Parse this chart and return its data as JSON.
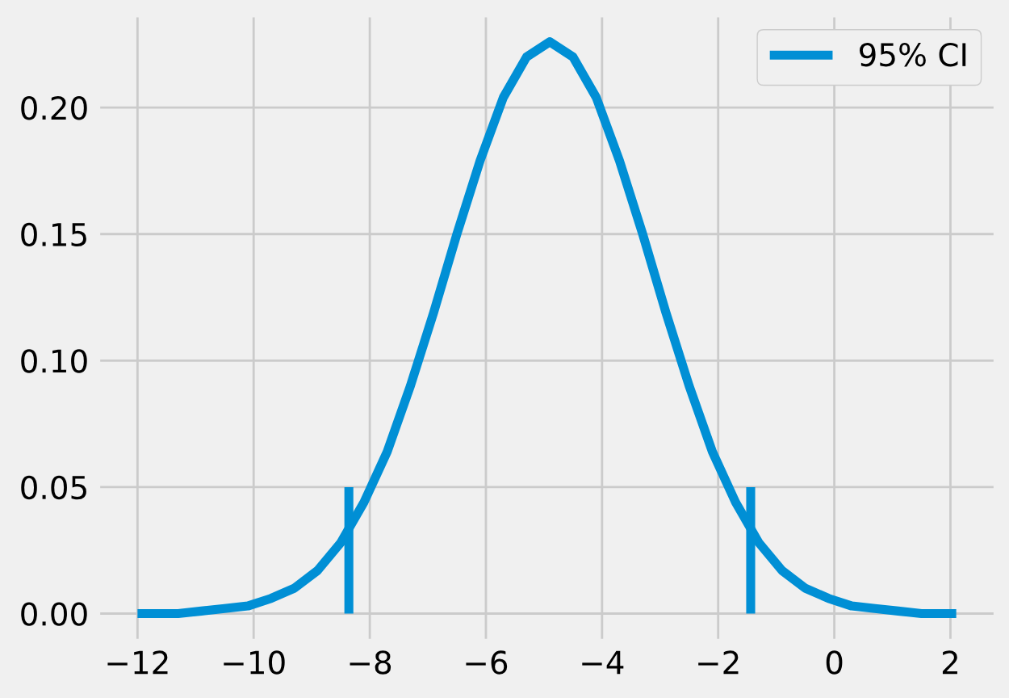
{
  "chart_data": {
    "type": "line",
    "series": [
      {
        "name": "95% CI",
        "color": "#008fd5",
        "x": [
          -12.0,
          -11.7,
          -11.3,
          -10.9,
          -10.5,
          -10.1,
          -9.7,
          -9.3,
          -8.9,
          -8.5,
          -8.1,
          -7.7,
          -7.3,
          -6.9,
          -6.5,
          -6.1,
          -5.7,
          -5.3,
          -4.9,
          -4.5,
          -4.1,
          -3.7,
          -3.3,
          -2.9,
          -2.5,
          -2.1,
          -1.7,
          -1.3,
          -0.9,
          -0.5,
          -0.1,
          0.3,
          0.7,
          1.1,
          1.5,
          1.9,
          2.1
        ],
        "values": [
          0.0,
          0.0,
          0.0,
          0.001,
          0.002,
          0.003,
          0.006,
          0.01,
          0.017,
          0.028,
          0.044,
          0.064,
          0.09,
          0.119,
          0.15,
          0.179,
          0.204,
          0.22,
          0.226,
          0.22,
          0.204,
          0.179,
          0.15,
          0.119,
          0.09,
          0.064,
          0.044,
          0.028,
          0.017,
          0.01,
          0.006,
          0.003,
          0.002,
          0.001,
          0.0,
          0.0,
          0.0
        ]
      },
      {
        "color": "#008fd5",
        "x": [
          -8.36,
          -8.36
        ],
        "values": [
          0.0,
          0.05
        ]
      },
      {
        "color": "#008fd5",
        "x": [
          -1.44,
          -1.44
        ],
        "values": [
          0.0,
          0.05
        ]
      }
    ],
    "xlim": [
      -12.7,
      2.8
    ],
    "xticks": [
      {
        "value": -12,
        "label": "−12"
      },
      {
        "value": -10,
        "label": "−10"
      },
      {
        "value": -8,
        "label": "−8"
      },
      {
        "value": -6,
        "label": "−6"
      },
      {
        "value": -4,
        "label": "−4"
      },
      {
        "value": -2,
        "label": "−2"
      },
      0,
      2
    ],
    "ylim": [
      -0.0113,
      0.237
    ],
    "yticks": [
      {
        "value": 0,
        "label": "0.00"
      },
      {
        "value": 0.05,
        "label": "0.05"
      },
      {
        "value": 0.1,
        "label": "0.10"
      },
      {
        "value": 0.15,
        "label": "0.15"
      },
      {
        "value": 0.2,
        "label": "0.20"
      }
    ],
    "grid": true,
    "legend": "top right"
  }
}
